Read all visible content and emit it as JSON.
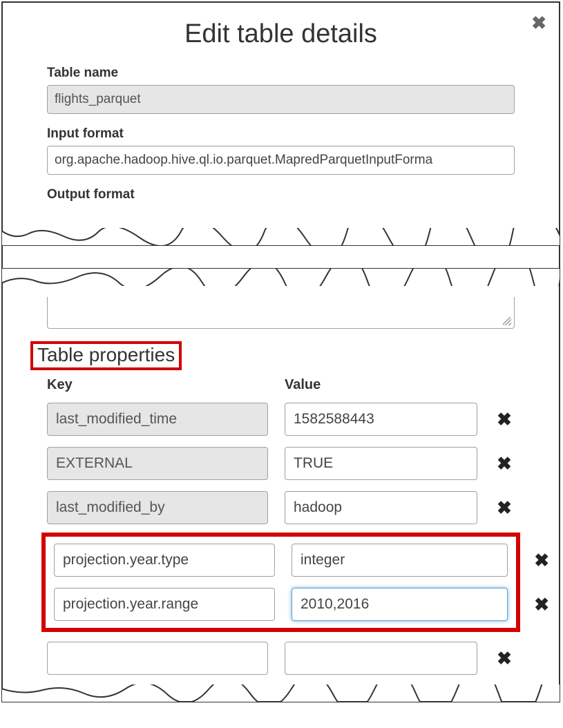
{
  "dialog": {
    "title": "Edit table details",
    "close_icon": "✖"
  },
  "fields": {
    "table_name": {
      "label": "Table name",
      "value": "flights_parquet",
      "readonly": true
    },
    "input_format": {
      "label": "Input format",
      "value": "org.apache.hadoop.hive.ql.io.parquet.MapredParquetInputForma",
      "readonly": false
    },
    "output_format": {
      "label": "Output format",
      "value": "",
      "readonly": false
    }
  },
  "properties": {
    "heading": "Table properties",
    "columns": {
      "key": "Key",
      "value": "Value"
    },
    "rows": [
      {
        "key": "last_modified_time",
        "value": "1582588443",
        "key_readonly": true,
        "value_readonly": false
      },
      {
        "key": "EXTERNAL",
        "value": "TRUE",
        "key_readonly": true,
        "value_readonly": false
      },
      {
        "key": "last_modified_by",
        "value": "hadoop",
        "key_readonly": true,
        "value_readonly": false
      },
      {
        "key": "projection.year.type",
        "value": "integer",
        "key_readonly": false,
        "value_readonly": false,
        "highlighted": true
      },
      {
        "key": "projection.year.range",
        "value": "2010,2016",
        "key_readonly": false,
        "value_readonly": false,
        "highlighted": true,
        "value_focused": true
      },
      {
        "key": "",
        "value": "",
        "key_readonly": false,
        "value_readonly": false
      }
    ],
    "delete_icon": "✖"
  },
  "style": {
    "highlight_color": "#d20000",
    "readonly_bg": "#e6e6e6",
    "border_color": "#a0a0a0",
    "focus_ring": "#5b9dd9"
  }
}
